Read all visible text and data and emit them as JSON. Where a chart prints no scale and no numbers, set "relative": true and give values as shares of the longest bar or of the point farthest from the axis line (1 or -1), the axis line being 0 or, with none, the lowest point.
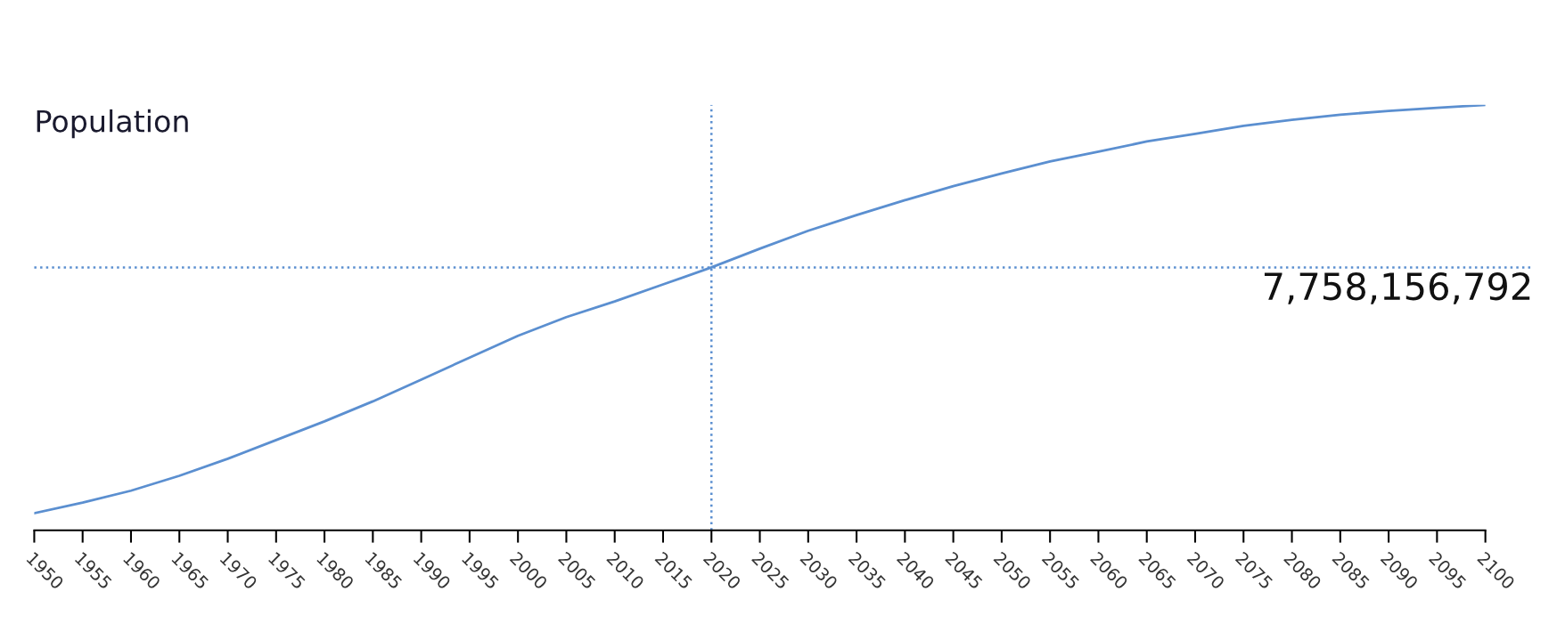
{
  "chart_data": {
    "type": "line",
    "title": "Population",
    "relative": true,
    "x": [
      1950,
      1955,
      1960,
      1965,
      1970,
      1975,
      1980,
      1985,
      1990,
      1995,
      2000,
      2005,
      2010,
      2015,
      2020,
      2025,
      2030,
      2035,
      2040,
      2045,
      2050,
      2055,
      2060,
      2065,
      2070,
      2075,
      2080,
      2085,
      2090,
      2095,
      2100
    ],
    "series": [
      {
        "color": "#5b8fd0",
        "values": [
          0.04,
          0.065,
          0.093,
          0.128,
          0.168,
          0.212,
          0.256,
          0.303,
          0.354,
          0.406,
          0.457,
          0.501,
          0.538,
          0.578,
          0.618,
          0.662,
          0.704,
          0.741,
          0.776,
          0.809,
          0.839,
          0.867,
          0.89,
          0.914,
          0.932,
          0.951,
          0.965,
          0.977,
          0.986,
          0.993,
          1.0
        ]
      }
    ],
    "xlim": [
      1950,
      2100
    ],
    "xticks": [
      1950,
      1955,
      1960,
      1965,
      1970,
      1975,
      1980,
      1985,
      1990,
      1995,
      2000,
      2005,
      2010,
      2015,
      2020,
      2025,
      2030,
      2035,
      2040,
      2045,
      2050,
      2055,
      2060,
      2065,
      2070,
      2075,
      2080,
      2085,
      2090,
      2095,
      2100
    ],
    "ref_lines": [
      {
        "axis": "x",
        "value": 2020,
        "color": "#5b8fd0",
        "line_style": "dotted"
      },
      {
        "axis": "y",
        "value": 0.618,
        "color": "#5b8fd0",
        "line_style": "dotted"
      }
    ],
    "annotations": [
      "7,758,156,792"
    ],
    "grid": false,
    "legend": false
  }
}
